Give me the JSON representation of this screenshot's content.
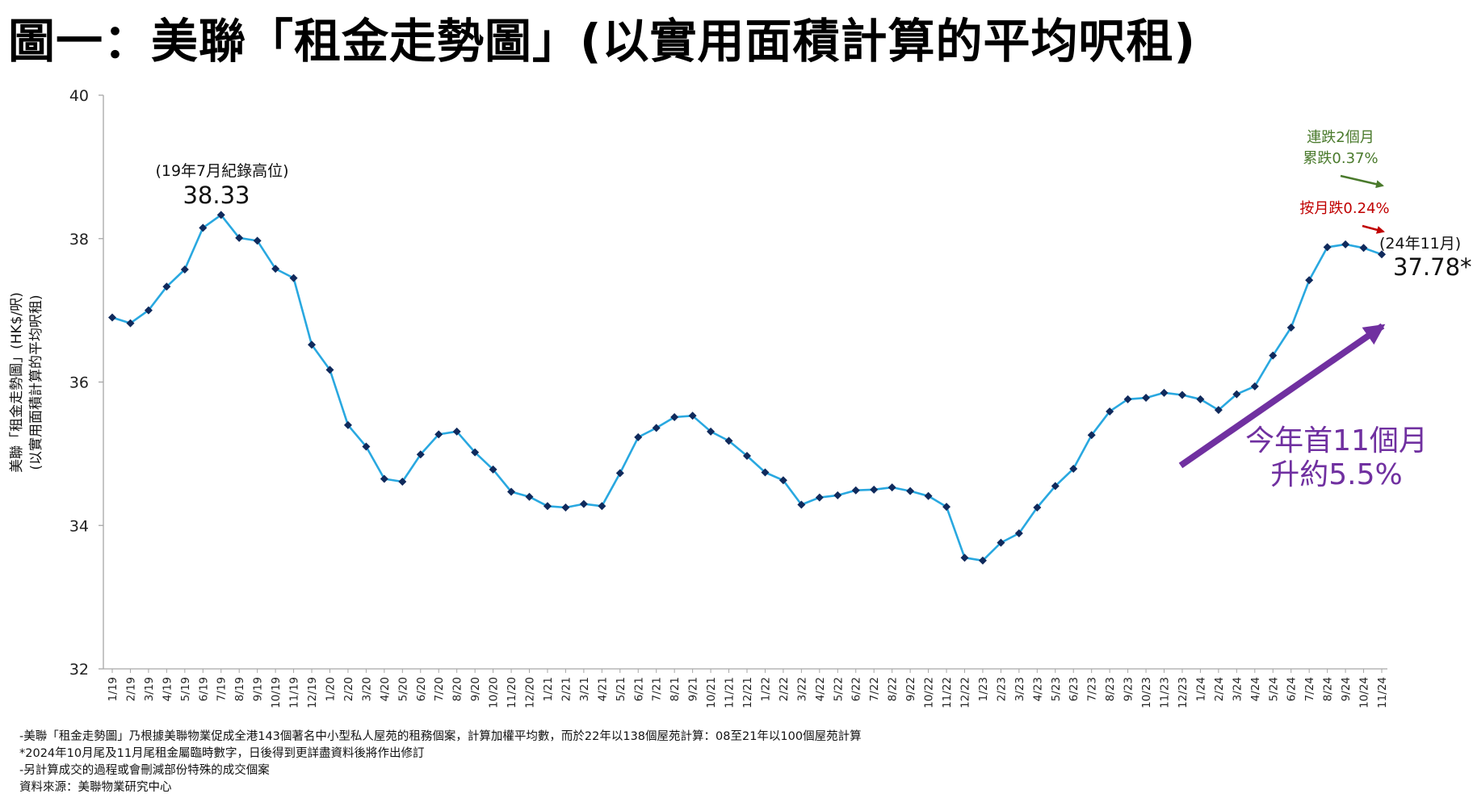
{
  "page": {
    "title": "圖一：美聯「租金走勢圖」(以實用面積計算的平均呎租)"
  },
  "chart_data": {
    "type": "line",
    "title": "圖一：美聯「租金走勢圖」(以實用面積計算的平均呎租)",
    "ylabel_line1": "美聯「租金走勢圖」(HK$/呎)",
    "ylabel_line2": "(以實用面積計算的平均呎租)",
    "ylim": [
      32,
      40
    ],
    "yticks": [
      32,
      34,
      36,
      38,
      40
    ],
    "grid": false,
    "line_color": "#29a8e0",
    "marker_color": "#102a5c",
    "categories": [
      "1/19",
      "2/19",
      "3/19",
      "4/19",
      "5/19",
      "6/19",
      "7/19",
      "8/19",
      "9/19",
      "10/19",
      "11/19",
      "12/19",
      "1/20",
      "2/20",
      "3/20",
      "4/20",
      "5/20",
      "6/20",
      "7/20",
      "8/20",
      "9/20",
      "10/20",
      "11/20",
      "12/20",
      "1/21",
      "2/21",
      "3/21",
      "4/21",
      "5/21",
      "6/21",
      "7/21",
      "8/21",
      "9/21",
      "10/21",
      "11/21",
      "12/21",
      "1/22",
      "2/22",
      "3/22",
      "4/22",
      "5/22",
      "6/22",
      "7/22",
      "8/22",
      "9/22",
      "10/22",
      "11/22",
      "12/22",
      "1/23",
      "2/23",
      "3/23",
      "4/23",
      "5/23",
      "6/23",
      "7/23",
      "8/23",
      "9/23",
      "10/23",
      "11/23",
      "12/23",
      "1/24",
      "2/24",
      "3/24",
      "4/24",
      "5/24",
      "6/24",
      "7/24",
      "8/24",
      "9/24",
      "10/24",
      "11/24"
    ],
    "values": [
      36.9,
      36.82,
      37.0,
      37.33,
      37.57,
      38.15,
      38.33,
      38.01,
      37.97,
      37.58,
      37.45,
      36.52,
      36.17,
      35.4,
      35.1,
      34.65,
      34.61,
      34.99,
      35.27,
      35.31,
      35.02,
      34.78,
      34.47,
      34.4,
      34.27,
      34.25,
      34.3,
      34.27,
      34.73,
      35.23,
      35.36,
      35.51,
      35.53,
      35.31,
      35.18,
      34.97,
      34.74,
      34.63,
      34.29,
      34.39,
      34.42,
      34.49,
      34.5,
      34.53,
      34.48,
      34.41,
      34.26,
      33.55,
      33.51,
      33.76,
      33.89,
      34.25,
      34.55,
      34.79,
      35.26,
      35.59,
      35.76,
      35.78,
      35.85,
      35.82,
      35.76,
      35.61,
      35.83,
      35.94,
      36.37,
      36.76,
      37.42,
      37.88,
      37.92,
      37.87,
      37.78
    ],
    "annotations": {
      "peak_label": "(19年7月紀錄高位)",
      "peak_value": "38.33",
      "latest_label": "(24年11月)",
      "latest_value": "37.78*",
      "green_line1": "連跌2個月",
      "green_line2": "累跌0.37%",
      "red_text": "按月跌0.24%",
      "purple_line1": "今年首11個月",
      "purple_line2": "升約5.5%",
      "green_color": "#4a7a2c",
      "red_color": "#c00000",
      "purple_color": "#7030a0"
    }
  },
  "footnotes": {
    "line1": "-美聯「租金走勢圖」乃根據美聯物業促成全港143個著名中小型私人屋苑的租務個案，計算加權平均數，而於22年以138個屋苑計算：08至21年以100個屋苑計算",
    "line2": "*2024年10月尾及11月尾租金屬臨時數字，日後得到更詳盡資料後將作出修訂",
    "line3": "-另計算成交的過程或會刪減部份特殊的成交個案",
    "line4": "資料來源：美聯物業研究中心"
  }
}
